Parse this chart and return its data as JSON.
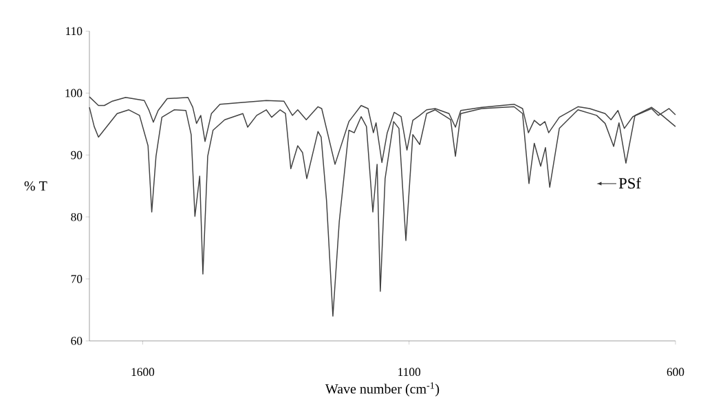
{
  "chart_data": {
    "type": "line",
    "xlabel": "Wave number (cm$^{-1}$)",
    "ylabel": "% T",
    "xlim": [
      1700,
      600
    ],
    "ylim": [
      60,
      110
    ],
    "xticks": [
      1600,
      1100,
      600
    ],
    "yticks": [
      60,
      70,
      80,
      90,
      100,
      110
    ],
    "grid": false,
    "legend": "right",
    "marker": "none",
    "line_style": "solid",
    "series": [
      {
        "color": "#404040",
        "x": [
          1700,
          1683,
          1672,
          1657,
          1632,
          1597,
          1588,
          1580,
          1571,
          1554,
          1515,
          1506,
          1499,
          1491,
          1483,
          1471,
          1455,
          1412,
          1368,
          1335,
          1319,
          1309,
          1293,
          1271,
          1264,
          1239,
          1213,
          1190,
          1177,
          1167,
          1162,
          1151,
          1141,
          1128,
          1115,
          1104,
          1093,
          1080,
          1067,
          1051,
          1025,
          1013,
          1003,
          964,
          903,
          887,
          876,
          865,
          854,
          845,
          838,
          818,
          783,
          761,
          732,
          721,
          708,
          696,
          680,
          645,
          632,
          612,
          600
        ],
        "values": [
          99.4,
          98.0,
          98.0,
          98.7,
          99.3,
          98.8,
          97.2,
          95.3,
          97.2,
          99.1,
          99.3,
          97.7,
          95.1,
          96.4,
          92.2,
          96.7,
          98.2,
          98.5,
          98.8,
          98.7,
          96.4,
          97.3,
          95.7,
          97.8,
          97.5,
          88.5,
          95.4,
          98.0,
          97.5,
          93.6,
          95.2,
          88.8,
          93.6,
          96.9,
          96.2,
          90.8,
          95.6,
          96.4,
          97.3,
          97.5,
          96.7,
          94.5,
          97.2,
          97.7,
          98.2,
          97.5,
          93.6,
          95.6,
          94.8,
          95.4,
          93.6,
          96.1,
          97.8,
          97.5,
          96.7,
          95.7,
          97.2,
          94.3,
          96.2,
          97.5,
          96.4,
          97.5,
          96.5
        ]
      },
      {
        "name": "PSf",
        "color": "#404040",
        "x": [
          1700,
          1691,
          1683,
          1670,
          1648,
          1626,
          1606,
          1590,
          1583,
          1575,
          1564,
          1541,
          1519,
          1509,
          1502,
          1493,
          1487,
          1478,
          1468,
          1446,
          1412,
          1403,
          1386,
          1368,
          1358,
          1342,
          1332,
          1322,
          1309,
          1300,
          1292,
          1271,
          1265,
          1255,
          1243,
          1231,
          1213,
          1203,
          1190,
          1180,
          1168,
          1160,
          1154,
          1145,
          1129,
          1119,
          1106,
          1093,
          1080,
          1067,
          1051,
          1022,
          1013,
          1003,
          964,
          903,
          887,
          875,
          865,
          853,
          844,
          836,
          818,
          783,
          748,
          732,
          716,
          706,
          693,
          676,
          645,
          625,
          600
        ],
        "values": [
          97.7,
          94.6,
          92.9,
          94.3,
          96.7,
          97.3,
          96.4,
          91.5,
          80.8,
          89.8,
          96.1,
          97.3,
          97.2,
          93.3,
          80.1,
          86.6,
          70.8,
          89.8,
          94.0,
          95.7,
          96.7,
          94.5,
          96.4,
          97.3,
          96.1,
          97.3,
          96.7,
          87.8,
          91.5,
          90.4,
          86.2,
          93.8,
          92.9,
          82.7,
          64.0,
          79.3,
          94.0,
          93.6,
          96.2,
          94.6,
          80.8,
          88.5,
          68.0,
          86.2,
          95.4,
          94.3,
          76.2,
          93.3,
          91.7,
          96.7,
          97.3,
          95.7,
          89.8,
          96.7,
          97.5,
          97.8,
          96.7,
          85.4,
          91.9,
          88.2,
          91.2,
          84.8,
          94.3,
          97.3,
          96.4,
          95.1,
          91.4,
          95.2,
          88.7,
          96.4,
          97.7,
          96.4,
          94.6
        ]
      }
    ]
  }
}
